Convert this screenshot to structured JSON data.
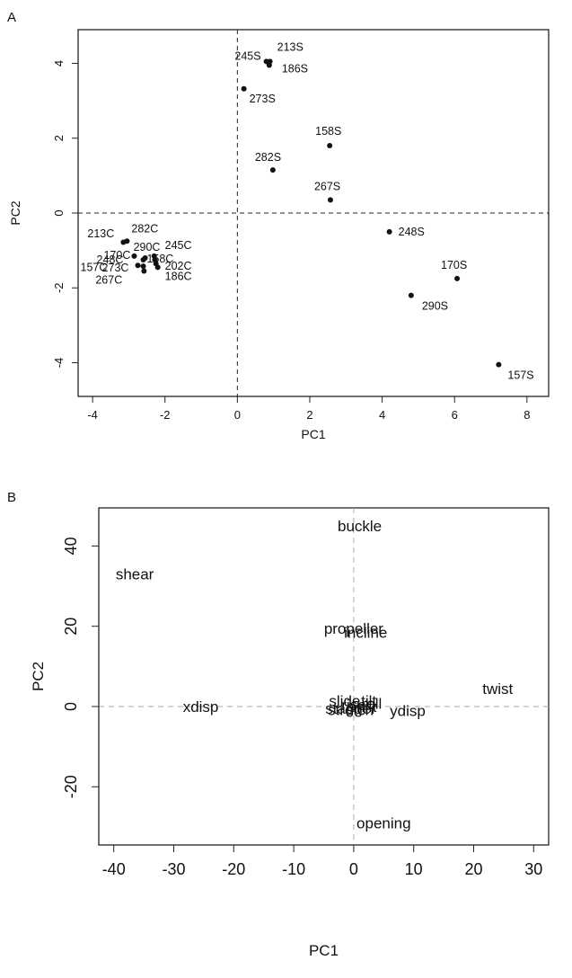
{
  "chart_data": [
    {
      "panel_label": "A",
      "type": "scatter",
      "xlabel": "PC1",
      "ylabel": "PC2",
      "xlim": [
        -4.4,
        8.6
      ],
      "ylim": [
        -4.9,
        4.9
      ],
      "xticks": [
        "-4",
        "-2",
        "0",
        "2",
        "4",
        "6",
        "8"
      ],
      "yticks": [
        "-4",
        "-2",
        "0",
        "2",
        "4"
      ],
      "reference_lines": {
        "x": 0,
        "y": 0,
        "style": "dashed"
      },
      "grid": false,
      "points": [
        {
          "label": "213S",
          "x": 0.9,
          "y": 4.05
        },
        {
          "label": "245S",
          "x": 0.8,
          "y": 4.05
        },
        {
          "label": "186S",
          "x": 0.88,
          "y": 3.95
        },
        {
          "label": "273S",
          "x": 0.18,
          "y": 3.32
        },
        {
          "label": "158S",
          "x": 2.55,
          "y": 1.8
        },
        {
          "label": "282S",
          "x": 0.98,
          "y": 1.15
        },
        {
          "label": "267S",
          "x": 2.57,
          "y": 0.35
        },
        {
          "label": "248S",
          "x": 4.2,
          "y": -0.5
        },
        {
          "label": "170S",
          "x": 6.07,
          "y": -1.75
        },
        {
          "label": "290S",
          "x": 4.8,
          "y": -2.2
        },
        {
          "label": "157S",
          "x": 7.22,
          "y": -4.05
        },
        {
          "label": "213C",
          "x": -3.05,
          "y": -0.75
        },
        {
          "label": "282C",
          "x": -3.15,
          "y": -0.78
        },
        {
          "label": "170C",
          "x": -2.85,
          "y": -1.15
        },
        {
          "label": "248C",
          "x": -2.6,
          "y": -1.25
        },
        {
          "label": "290C",
          "x": -2.55,
          "y": -1.2
        },
        {
          "label": "245C",
          "x": -2.3,
          "y": -1.15
        },
        {
          "label": "158C",
          "x": -2.28,
          "y": -1.25
        },
        {
          "label": "157C",
          "x": -2.75,
          "y": -1.4
        },
        {
          "label": "273C",
          "x": -2.6,
          "y": -1.42
        },
        {
          "label": "202C",
          "x": -2.25,
          "y": -1.35
        },
        {
          "label": "267C",
          "x": -2.58,
          "y": -1.55
        },
        {
          "label": "186C",
          "x": -2.2,
          "y": -1.45
        }
      ]
    },
    {
      "panel_label": "B",
      "type": "scatter",
      "xlabel": "PC1",
      "ylabel": "PC2",
      "xlim": [
        -42.5,
        32.5
      ],
      "ylim": [
        -34.5,
        49.5
      ],
      "xticks": [
        "-40",
        "-30",
        "-20",
        "-10",
        "0",
        "10",
        "20",
        "30"
      ],
      "yticks": [
        "-20",
        "0",
        "20",
        "40"
      ],
      "reference_lines": {
        "x": 0,
        "y": 0,
        "style": "dashed",
        "color": "#aaaaaa"
      },
      "grid": false,
      "labels": [
        {
          "text": "buckle",
          "x": 1,
          "y": 45
        },
        {
          "text": "shear",
          "x": -36.5,
          "y": 33
        },
        {
          "text": "propeller",
          "x": 0,
          "y": 19.5
        },
        {
          "text": "incline",
          "x": 2,
          "y": 18.5
        },
        {
          "text": "twist",
          "x": 24,
          "y": 4.5
        },
        {
          "text": "xdisp",
          "x": -25.5,
          "y": 0
        },
        {
          "text": "slide",
          "x": -1.5,
          "y": 1.5
        },
        {
          "text": "rise",
          "x": 0,
          "y": 0.5
        },
        {
          "text": "shift",
          "x": 1.5,
          "y": 0
        },
        {
          "text": "stagger",
          "x": -0.5,
          "y": -0.5
        },
        {
          "text": "stretch",
          "x": -0.5,
          "y": -0.8
        },
        {
          "text": "tilt",
          "x": 2.5,
          "y": 1.5
        },
        {
          "text": "roll",
          "x": 3,
          "y": 0.8
        },
        {
          "text": "ydisp",
          "x": 9,
          "y": -1
        },
        {
          "text": "opening",
          "x": 5,
          "y": -29
        }
      ]
    }
  ]
}
